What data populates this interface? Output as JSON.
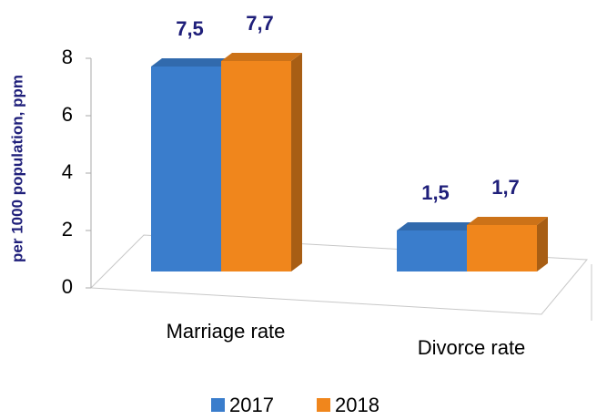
{
  "chart_data": {
    "type": "bar3d",
    "y_axis_label": "per 1000  population, ppm",
    "categories": [
      "Marriage rate",
      "Divorce rate"
    ],
    "series": [
      {
        "name": "2017",
        "color": "#3a7dcc",
        "values": [
          7.5,
          1.5
        ],
        "value_labels": [
          "7,5",
          "1,5"
        ]
      },
      {
        "name": "2018",
        "color": "#f0861c",
        "values": [
          7.7,
          1.7
        ],
        "value_labels": [
          "7,7",
          "1,7"
        ]
      }
    ],
    "ylim": [
      0,
      8
    ],
    "yticks": [
      0,
      2,
      4,
      6,
      8
    ],
    "legend": "bottom"
  }
}
